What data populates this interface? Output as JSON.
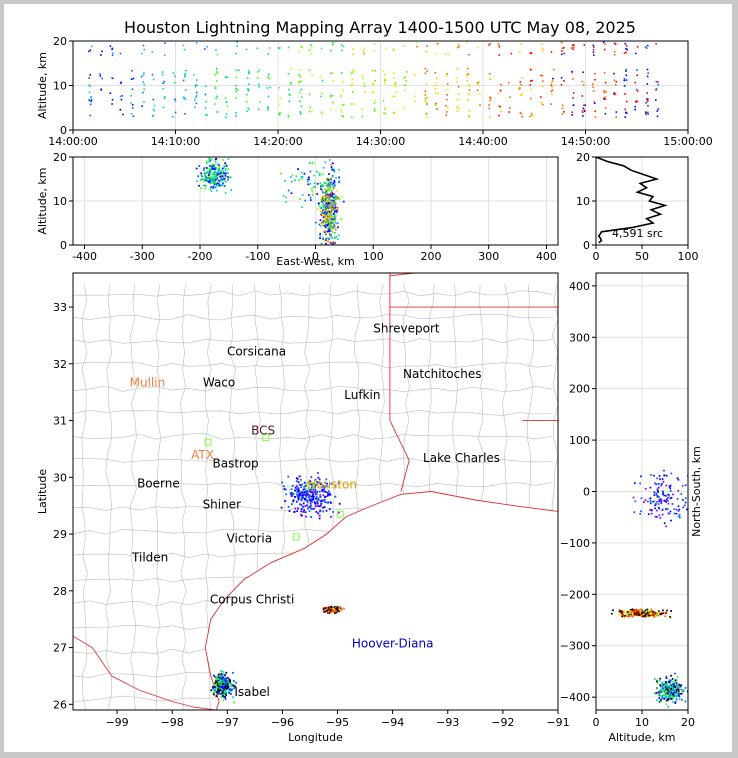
{
  "figure": {
    "title": "Houston Lightning Mapping Array 1400-1500 UTC May 08, 2025",
    "source_count_label": "4,591 src"
  },
  "chart_data": [
    {
      "panel": "altitude-vs-time",
      "type": "scatter",
      "xlabel": "",
      "ylabel": "Altitude, km",
      "x_ticks": [
        "14:00:00",
        "14:10:00",
        "14:20:00",
        "14:30:00",
        "14:40:00",
        "14:50:00",
        "15:00:00"
      ],
      "xlim": [
        "14:00:00",
        "15:00:00"
      ],
      "ylim": [
        0,
        20
      ],
      "y_ticks": [
        0,
        10,
        20
      ],
      "grid": true,
      "color_scale": "time (blue to red)"
    },
    {
      "panel": "altitude-vs-east-west",
      "type": "scatter",
      "xlabel": "East-West, km",
      "ylabel": "Altitude, km",
      "xlim": [
        -420,
        420
      ],
      "x_ticks": [
        -400,
        -300,
        -200,
        -100,
        0,
        100,
        200,
        300,
        400
      ],
      "ylim": [
        0,
        20
      ],
      "y_ticks": [
        0,
        10,
        20
      ],
      "clusters": [
        {
          "x": -175,
          "y": 16,
          "spread_x": 25,
          "spread_y": 3
        },
        {
          "x": 22,
          "y": 8,
          "spread_x": 15,
          "spread_y": 6
        },
        {
          "x": 0,
          "y": 14,
          "spread_x": 60,
          "spread_y": 5
        }
      ]
    },
    {
      "panel": "source-altitude-histogram",
      "type": "line",
      "xlim": [
        0,
        100
      ],
      "x_ticks": [
        0,
        50,
        100
      ],
      "ylim": [
        0,
        20
      ],
      "y_ticks": [
        0,
        10,
        20
      ],
      "altitude_km": [
        0.5,
        1,
        1.5,
        2,
        3,
        4,
        5,
        6,
        7,
        8,
        9,
        10,
        11,
        12,
        13,
        14,
        15,
        16,
        17,
        18,
        19,
        20
      ],
      "count": [
        3,
        6,
        5,
        3,
        6,
        40,
        62,
        55,
        70,
        60,
        75,
        58,
        62,
        45,
        55,
        48,
        66,
        52,
        38,
        30,
        12,
        0
      ]
    },
    {
      "panel": "map",
      "type": "scatter",
      "xlabel": "Longitude",
      "ylabel": "Latitude",
      "xlim": [
        -99.8,
        -91
      ],
      "ylim": [
        25.9,
        33.6
      ],
      "x_ticks": [
        -99,
        -98,
        -97,
        -96,
        -95,
        -94,
        -93,
        -92,
        -91
      ],
      "y_ticks": [
        26,
        27,
        28,
        29,
        30,
        31,
        32,
        33
      ],
      "clusters": [
        {
          "lon": -97.1,
          "lat": 26.35,
          "spread_lon": 0.18,
          "spread_lat": 0.2
        },
        {
          "lon": -95.1,
          "lat": 27.68,
          "spread_lon": 0.15,
          "spread_lat": 0.05
        },
        {
          "lon": -95.5,
          "lat": 29.7,
          "spread_lon": 0.45,
          "spread_lat": 0.35
        }
      ],
      "cities": [
        {
          "name": "Shreveport",
          "lon": -93.75,
          "lat": 32.55,
          "color": "#000000"
        },
        {
          "name": "Corsicana",
          "lon": -96.47,
          "lat": 32.15,
          "color": "#000000"
        },
        {
          "name": "Natchitoches",
          "lon": -93.1,
          "lat": 31.75,
          "color": "#000000"
        },
        {
          "name": "Mullin",
          "lon": -98.45,
          "lat": 31.6,
          "color": "#f08040"
        },
        {
          "name": "Waco",
          "lon": -97.15,
          "lat": 31.6,
          "color": "#000000"
        },
        {
          "name": "Lufkin",
          "lon": -94.55,
          "lat": 31.38,
          "color": "#000000"
        },
        {
          "name": "BCS",
          "lon": -96.35,
          "lat": 30.75,
          "color": "#5a1020"
        },
        {
          "name": "ATX",
          "lon": -97.45,
          "lat": 30.32,
          "color": "#f08040"
        },
        {
          "name": "Bastrop",
          "lon": -96.85,
          "lat": 30.17,
          "color": "#000000"
        },
        {
          "name": "Lake Charles",
          "lon": -92.75,
          "lat": 30.27,
          "color": "#000000"
        },
        {
          "name": "Boerne",
          "lon": -98.25,
          "lat": 29.82,
          "color": "#000000"
        },
        {
          "name": "Houston",
          "lon": -95.1,
          "lat": 29.8,
          "color": "#e0a000"
        },
        {
          "name": "Shiner",
          "lon": -97.1,
          "lat": 29.45,
          "color": "#000000"
        },
        {
          "name": "Victoria",
          "lon": -96.6,
          "lat": 28.85,
          "color": "#000000"
        },
        {
          "name": "Tilden",
          "lon": -98.4,
          "lat": 28.52,
          "color": "#000000"
        },
        {
          "name": "Corpus Christi",
          "lon": -96.55,
          "lat": 27.78,
          "color": "#000000"
        },
        {
          "name": "Hoover-Diana",
          "lon": -94.0,
          "lat": 27.0,
          "color": "#0000c0"
        },
        {
          "name": "Isabel",
          "lon": -96.55,
          "lat": 26.15,
          "color": "#000000"
        }
      ]
    },
    {
      "panel": "north-south-vs-altitude",
      "type": "scatter",
      "xlabel": "Altitude, km",
      "ylabel": "North-South, km",
      "xlim": [
        0,
        20
      ],
      "x_ticks": [
        0,
        10,
        20
      ],
      "ylim": [
        -425,
        425
      ],
      "y_ticks": [
        -400,
        -300,
        -200,
        -100,
        0,
        100,
        200,
        300,
        400
      ],
      "clusters": [
        {
          "alt": 10,
          "ns": -235,
          "spread_alt": 5,
          "spread_ns": 6
        },
        {
          "alt": 16,
          "ns": -385,
          "spread_alt": 3,
          "spread_ns": 20
        },
        {
          "alt": 14,
          "ns": -10,
          "spread_alt": 5,
          "spread_ns": 40
        }
      ]
    }
  ]
}
